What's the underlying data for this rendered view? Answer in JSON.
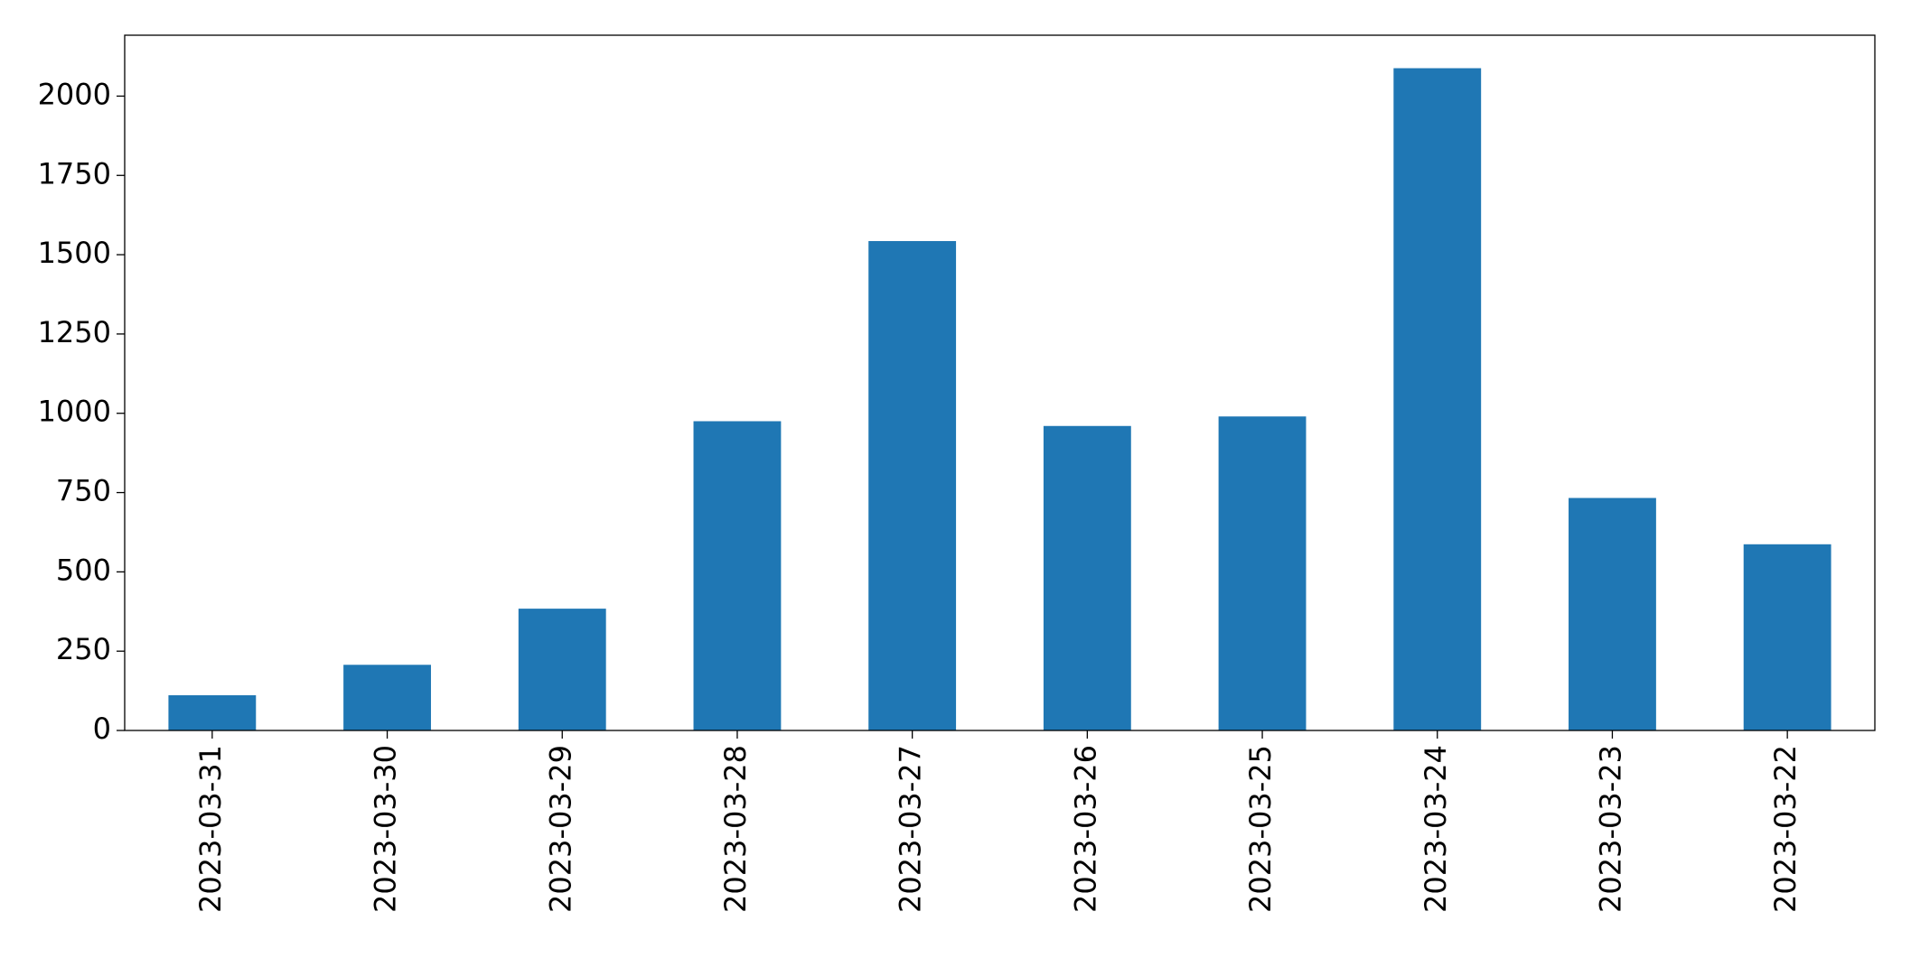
{
  "chart_data": {
    "type": "bar",
    "categories": [
      "2023-03-31",
      "2023-03-30",
      "2023-03-29",
      "2023-03-28",
      "2023-03-27",
      "2023-03-26",
      "2023-03-25",
      "2023-03-24",
      "2023-03-23",
      "2023-03-22"
    ],
    "values": [
      111,
      207,
      384,
      975,
      1543,
      960,
      990,
      2088,
      733,
      587
    ],
    "color": "#1f77b4",
    "ylim": [
      0,
      2192
    ],
    "yticks": [
      0,
      250,
      500,
      750,
      1000,
      1250,
      1500,
      1750,
      2000
    ],
    "grid": false
  }
}
